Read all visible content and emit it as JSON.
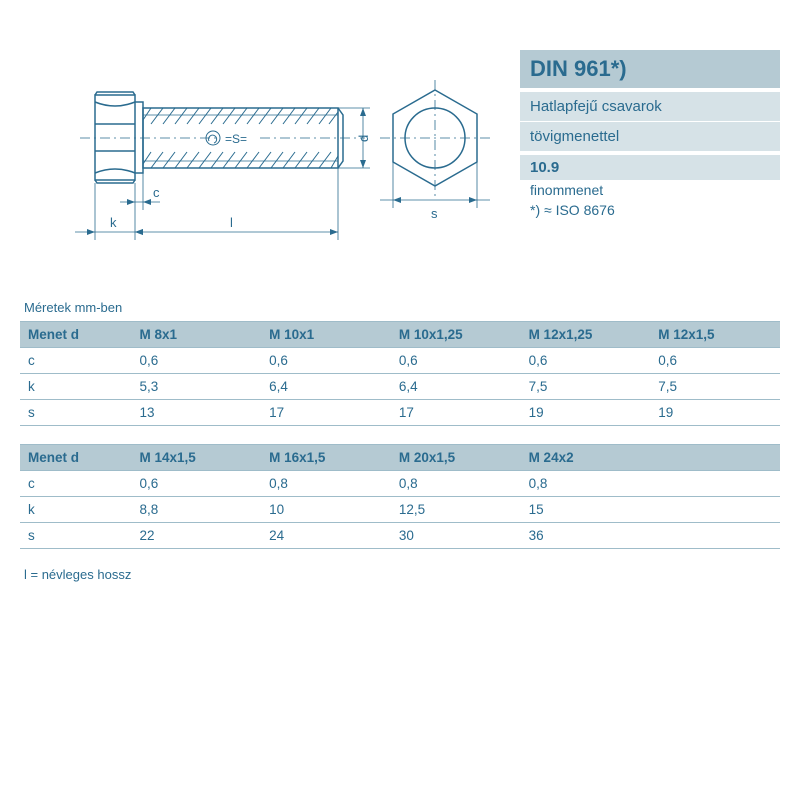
{
  "colors": {
    "primary_text": "#2a6b8f",
    "header_bg": "#b5cad3",
    "subheader_bg": "#d6e2e7",
    "border": "#9fbcc9",
    "page_bg": "#ffffff",
    "diagram_stroke": "#2a6b8f"
  },
  "diagram": {
    "type": "technical_drawing",
    "labels": {
      "c": "c",
      "k": "k",
      "l": "l",
      "d": "d",
      "s": "s",
      "S_on_bolt": "=S="
    }
  },
  "info": {
    "title": "DIN 961*)",
    "subtitle1": "Hatlapfejű csavarok",
    "subtitle2": "tövigmenettel",
    "grade": "10.9",
    "thread_type": "finommenet",
    "iso_note": "*) ≈ ISO 8676"
  },
  "caption": "Méretek mm-ben",
  "table1": {
    "type": "table",
    "header_label": "Menet d",
    "columns": [
      "M 8x1",
      "M 10x1",
      "M 10x1,25",
      "M 12x1,25",
      "M 12x1,5"
    ],
    "rows": [
      {
        "label": "c",
        "values": [
          "0,6",
          "0,6",
          "0,6",
          "0,6",
          "0,6"
        ]
      },
      {
        "label": "k",
        "values": [
          "5,3",
          "6,4",
          "6,4",
          "7,5",
          "7,5"
        ]
      },
      {
        "label": "s",
        "values": [
          "13",
          "17",
          "17",
          "19",
          "19"
        ]
      }
    ],
    "col_count": 5
  },
  "table2": {
    "type": "table",
    "header_label": "Menet d",
    "columns": [
      "M 14x1,5",
      "M 16x1,5",
      "M 20x1,5",
      "M 24x2",
      ""
    ],
    "rows": [
      {
        "label": "c",
        "values": [
          "0,6",
          "0,8",
          "0,8",
          "0,8",
          ""
        ]
      },
      {
        "label": "k",
        "values": [
          "8,8",
          "10",
          "12,5",
          "15",
          ""
        ]
      },
      {
        "label": "s",
        "values": [
          "22",
          "24",
          "30",
          "36",
          ""
        ]
      }
    ],
    "col_count": 5
  },
  "footer": "l = névleges hossz"
}
